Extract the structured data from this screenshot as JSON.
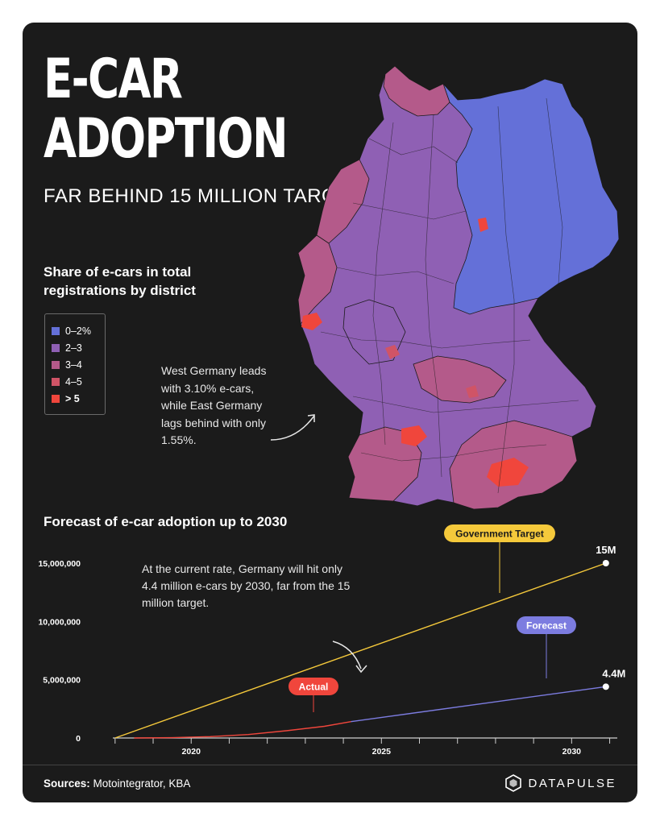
{
  "title": {
    "line1": "E-CAR",
    "line2": "ADOPTION",
    "subtitle": "FAR BEHIND 15 MILLION TARGET"
  },
  "map": {
    "title": "Share of e-cars in total registrations by district",
    "legend": [
      {
        "label": "0–2%",
        "color": "#6470d8"
      },
      {
        "label": "2–3",
        "color": "#8f60b4"
      },
      {
        "label": "3–4",
        "color": "#b45a8a"
      },
      {
        "label": "4–5",
        "color": "#d05466"
      },
      {
        "label": "> 5",
        "color": "#f0463c"
      }
    ],
    "note": "West Germany leads with 3.10% e-cars, while East Germany lags behind with only 1.55%."
  },
  "forecast": {
    "title": "Forecast of e-car adoption up to 2030",
    "note": "At the current rate, Germany will hit only 4.4 million e-cars by 2030, far from the 15 million target.",
    "labels": {
      "target": "Government Target",
      "forecast": "Forecast",
      "actual": "Actual",
      "target_end": "15M",
      "forecast_end": "4.4M"
    }
  },
  "chart_data": {
    "type": "line",
    "title": "Forecast of e-car adoption up to 2030",
    "xlim": [
      2016.5,
      2031.2
    ],
    "ylim": [
      0,
      15000000
    ],
    "x_ticks": [
      "2020",
      "2025",
      "2030"
    ],
    "y_ticks": [
      "0",
      "5,000,000",
      "10,000,000",
      "15,000,000"
    ],
    "series": [
      {
        "name": "Government Target",
        "color": "#f5c93b",
        "points": [
          [
            2018,
            0
          ],
          [
            2030.9,
            15000000
          ]
        ]
      },
      {
        "name": "Actual",
        "color": "#f0463c",
        "points": [
          [
            2018.5,
            0
          ],
          [
            2019.5,
            30000
          ],
          [
            2020.5,
            120000
          ],
          [
            2021.5,
            300000
          ],
          [
            2022.5,
            620000
          ],
          [
            2023.5,
            1000000
          ],
          [
            2024.2,
            1400000
          ]
        ]
      },
      {
        "name": "Forecast",
        "color": "#7c7ce0",
        "points": [
          [
            2024.2,
            1400000
          ],
          [
            2030.9,
            4400000
          ]
        ]
      }
    ]
  },
  "footer": {
    "sources_label": "Sources:",
    "sources_text": "Motointegrator, KBA",
    "brand": "DATAPULSE"
  },
  "colors": {
    "background": "#1b1b1b",
    "text": "#ffffff"
  }
}
